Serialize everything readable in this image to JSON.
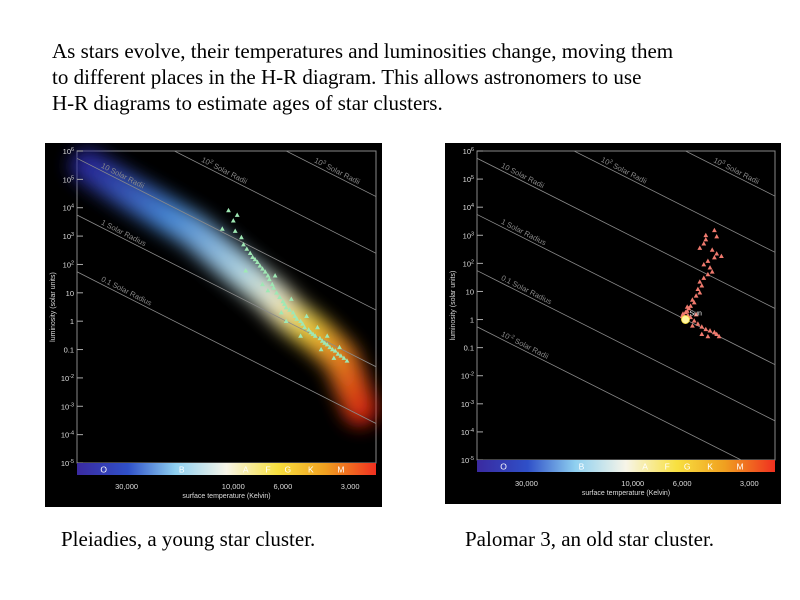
{
  "intro": {
    "lines": [
      "As stars evolve, their temperatures and luminosities change, moving them",
      "to different places in the H-R diagram.  This allows astronomers to use",
      "H-R diagrams to estimate ages of star clusters."
    ]
  },
  "captions": {
    "left": "Pleiadies, a young star cluster.",
    "right": "Palomar 3, an old star cluster."
  },
  "chart_data": [
    {
      "type": "scatter",
      "title": "",
      "xlabel": "surface temperature (Kelvin)",
      "ylabel": "luminosity (solar units)",
      "x_scale": "log-reversed",
      "xlim": [
        50000,
        2300
      ],
      "ylim": [
        1e-05,
        1000000
      ],
      "y_scale": "log",
      "x_ticks": [
        "30,000",
        "10,000",
        "6,000",
        "3,000"
      ],
      "x_tick_values": [
        30000,
        10000,
        6000,
        3000
      ],
      "y_ticks": [
        "10^6",
        "10^5",
        "10^4",
        "10^3",
        "10^2",
        "10",
        "1",
        "0.1",
        "10^-2",
        "10^-3",
        "10^-4",
        "10^-5"
      ],
      "spectral_classes": [
        "O",
        "B",
        "A",
        "F",
        "G",
        "K",
        "M"
      ],
      "radius_lines": [
        "10^2 Solar Radii",
        "10^3 Solar Radii",
        "10 Solar Radii",
        "1 Solar Radius",
        "0.1 Solar Radius"
      ],
      "series": [
        {
          "marker": "triangle",
          "color": "#9fe8b4",
          "points": [
            [
              10500,
              8000
            ],
            [
              10000,
              3500
            ],
            [
              9600,
              5500
            ],
            [
              11200,
              1800
            ],
            [
              9800,
              1500
            ],
            [
              9200,
              900
            ],
            [
              9000,
              500
            ],
            [
              8700,
              350
            ],
            [
              8400,
              250
            ],
            [
              8200,
              180
            ],
            [
              8000,
              150
            ],
            [
              7800,
              120
            ],
            [
              7600,
              90
            ],
            [
              7400,
              70
            ],
            [
              7200,
              55
            ],
            [
              7000,
              40
            ],
            [
              6900,
              30
            ],
            [
              6700,
              20
            ],
            [
              6600,
              15
            ],
            [
              6400,
              10
            ],
            [
              6200,
              7
            ],
            [
              6000,
              5
            ],
            [
              5900,
              4
            ],
            [
              5800,
              3
            ],
            [
              5600,
              2.5
            ],
            [
              5400,
              2
            ],
            [
              5300,
              1.5
            ],
            [
              5200,
              1.2
            ],
            [
              5000,
              1
            ],
            [
              4900,
              0.8
            ],
            [
              4800,
              0.6
            ],
            [
              4600,
              0.5
            ],
            [
              4500,
              0.4
            ],
            [
              4400,
              0.35
            ],
            [
              4300,
              0.3
            ],
            [
              4100,
              0.25
            ],
            [
              4000,
              0.2
            ],
            [
              3900,
              0.17
            ],
            [
              3800,
              0.15
            ],
            [
              3700,
              0.12
            ],
            [
              3600,
              0.1
            ],
            [
              3500,
              0.09
            ],
            [
              3400,
              0.07
            ],
            [
              3300,
              0.06
            ],
            [
              3200,
              0.05
            ],
            [
              3100,
              0.04
            ],
            [
              6500,
              40
            ],
            [
              7000,
              12
            ],
            [
              5500,
              6
            ],
            [
              4700,
              1.5
            ],
            [
              5000,
              0.3
            ],
            [
              4200,
              0.6
            ],
            [
              3800,
              0.3
            ],
            [
              8800,
              60
            ],
            [
              5800,
              1
            ],
            [
              6100,
              2
            ],
            [
              3350,
              0.12
            ],
            [
              3550,
              0.05
            ],
            [
              4050,
              0.1
            ],
            [
              7400,
              20
            ]
          ]
        }
      ]
    },
    {
      "type": "scatter",
      "title": "",
      "xlabel": "surface temperature (Kelvin)",
      "ylabel": "luminosity (solar units)",
      "x_scale": "log-reversed",
      "xlim": [
        50000,
        2300
      ],
      "ylim": [
        1e-05,
        1000000
      ],
      "y_scale": "log",
      "x_ticks": [
        "30,000",
        "10,000",
        "6,000",
        "3,000"
      ],
      "x_tick_values": [
        30000,
        10000,
        6000,
        3000
      ],
      "y_ticks": [
        "10^6",
        "10^5",
        "10^4",
        "10^3",
        "10^2",
        "10",
        "1",
        "0.1",
        "10^-2",
        "10^-3",
        "10^-4",
        "10^-5"
      ],
      "spectral_classes": [
        "O",
        "B",
        "A",
        "F",
        "G",
        "K",
        "M"
      ],
      "radius_lines": [
        "10^2 Solar Radii",
        "10^3 Solar Radii",
        "10 Solar Radii",
        "1 Solar Radius",
        "0.1 Solar Radius",
        "10^-2 Solar Radii"
      ],
      "annotation": "Sun",
      "sun": [
        5800,
        1
      ],
      "series": [
        {
          "marker": "triangle",
          "color": "#f07a6e",
          "points": [
            [
              4300,
              1500
            ],
            [
              4200,
              900
            ],
            [
              4700,
              700
            ],
            [
              4800,
              500
            ],
            [
              5000,
              350
            ],
            [
              4400,
              300
            ],
            [
              4200,
              220
            ],
            [
              4000,
              180
            ],
            [
              4300,
              160
            ],
            [
              4600,
              120
            ],
            [
              4800,
              90
            ],
            [
              4500,
              70
            ],
            [
              4400,
              50
            ],
            [
              4600,
              40
            ],
            [
              4800,
              30
            ],
            [
              5000,
              22
            ],
            [
              4900,
              16
            ],
            [
              5100,
              12
            ],
            [
              5000,
              9
            ],
            [
              5200,
              7
            ],
            [
              5400,
              5
            ],
            [
              5300,
              4
            ],
            [
              5500,
              3
            ],
            [
              5600,
              2.5
            ],
            [
              5700,
              2
            ],
            [
              5800,
              1.8
            ],
            [
              5650,
              1.4
            ],
            [
              5500,
              1.2
            ],
            [
              5300,
              0.9
            ],
            [
              5100,
              0.7
            ],
            [
              4900,
              0.55
            ],
            [
              4700,
              0.45
            ],
            [
              4500,
              0.4
            ],
            [
              4300,
              0.35
            ],
            [
              4200,
              0.3
            ],
            [
              4100,
              0.25
            ],
            [
              5950,
              1.6
            ],
            [
              6000,
              1.3
            ],
            [
              5400,
              0.6
            ],
            [
              4900,
              0.3
            ],
            [
              4600,
              0.25
            ],
            [
              5200,
              1.5
            ],
            [
              5700,
              2.8
            ],
            [
              4700,
              1000
            ]
          ]
        }
      ]
    }
  ]
}
